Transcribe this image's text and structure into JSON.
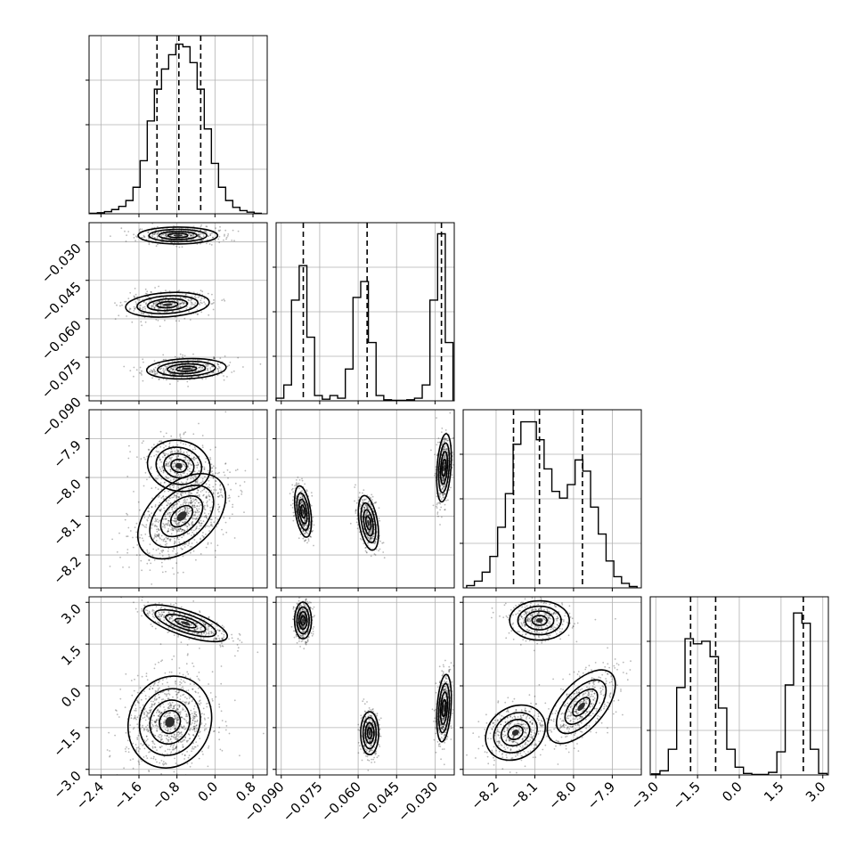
{
  "chart_data": {
    "type": "corner",
    "parameters": [
      {
        "range": [
          -2.65,
          1.1
        ],
        "ticks": [
          -2.4,
          -1.6,
          -0.8,
          0.0,
          0.8
        ],
        "tick_labels": [
          "−2.4",
          "−1.6",
          "−0.8",
          "0.0",
          "0.8"
        ]
      },
      {
        "range": [
          -0.092,
          -0.0225
        ],
        "ticks": [
          -0.09,
          -0.075,
          -0.06,
          -0.045,
          -0.03
        ],
        "tick_labels": [
          "−0.090",
          "−0.075",
          "−0.060",
          "−0.045",
          "−0.030"
        ]
      },
      {
        "range": [
          -8.285,
          -7.825
        ],
        "ticks": [
          -8.2,
          -8.1,
          -8.0,
          -7.9
        ],
        "tick_labels": [
          "−8.2",
          "−8.1",
          "−8.0",
          "−7.9"
        ]
      },
      {
        "range": [
          -3.2,
          3.2
        ],
        "ticks": [
          -3.0,
          -1.5,
          0.0,
          1.5,
          3.0
        ],
        "tick_labels": [
          "−3.0",
          "−1.5",
          "0.0",
          "1.5",
          "3.0"
        ]
      }
    ],
    "histograms": [
      {
        "quantiles": [
          -1.22,
          -0.76,
          -0.3
        ],
        "peak": 0.32,
        "x": [
          -2.55,
          -2.4,
          -2.25,
          -2.1,
          -1.95,
          -1.8,
          -1.65,
          -1.5,
          -1.35,
          -1.2,
          -1.05,
          -0.9,
          -0.75,
          -0.6,
          -0.45,
          -0.3,
          -0.15,
          0.0,
          0.15,
          0.3,
          0.45,
          0.6,
          0.75,
          0.9
        ],
        "counts": [
          0.001,
          0.002,
          0.004,
          0.008,
          0.014,
          0.025,
          0.05,
          0.1,
          0.175,
          0.235,
          0.273,
          0.3,
          0.32,
          0.315,
          0.285,
          0.235,
          0.16,
          0.095,
          0.05,
          0.025,
          0.012,
          0.006,
          0.003,
          0.001
        ]
      },
      {
        "quantiles": [
          -0.0814,
          -0.0565,
          -0.0275
        ],
        "peak": 0.32,
        "x": [
          -0.0905,
          -0.0875,
          -0.0845,
          -0.0815,
          -0.0785,
          -0.0755,
          -0.0725,
          -0.0695,
          -0.0665,
          -0.0635,
          -0.0605,
          -0.0575,
          -0.0545,
          -0.0515,
          -0.0485,
          -0.0455,
          -0.0425,
          -0.0395,
          -0.0365,
          -0.0335,
          -0.0305,
          -0.0275,
          -0.0245
        ],
        "counts": [
          0.005,
          0.03,
          0.19,
          0.255,
          0.12,
          0.01,
          0.003,
          0.01,
          0.005,
          0.06,
          0.195,
          0.225,
          0.11,
          0.01,
          0.002,
          0.001,
          0.001,
          0.002,
          0.005,
          0.03,
          0.19,
          0.315,
          0.11
        ]
      },
      {
        "quantiles": [
          -8.155,
          -8.088,
          -7.977
        ],
        "peak": 0.378,
        "x": [
          -8.266,
          -8.246,
          -8.226,
          -8.206,
          -8.186,
          -8.166,
          -8.146,
          -8.126,
          -8.106,
          -8.086,
          -8.066,
          -8.046,
          -8.026,
          -8.006,
          -7.986,
          -7.966,
          -7.946,
          -7.926,
          -7.906,
          -7.886,
          -7.866,
          -7.846
        ],
        "counts": [
          0.005,
          0.015,
          0.035,
          0.07,
          0.135,
          0.21,
          0.32,
          0.37,
          0.37,
          0.33,
          0.265,
          0.215,
          0.2,
          0.23,
          0.285,
          0.26,
          0.18,
          0.12,
          0.06,
          0.025,
          0.01,
          0.003
        ]
      },
      {
        "quantiles": [
          -1.75,
          -0.85,
          2.3
        ],
        "peak": 0.33,
        "x": [
          -3.0,
          -2.7,
          -2.4,
          -2.1,
          -1.8,
          -1.5,
          -1.2,
          -0.9,
          -0.6,
          -0.3,
          0.0,
          0.3,
          0.6,
          0.9,
          1.2,
          1.5,
          1.8,
          2.1,
          2.4,
          2.7,
          3.0
        ],
        "counts": [
          0.002,
          0.008,
          0.05,
          0.17,
          0.265,
          0.255,
          0.26,
          0.23,
          0.13,
          0.05,
          0.015,
          0.003,
          0.001,
          0.001,
          0.005,
          0.045,
          0.175,
          0.315,
          0.295,
          0.05,
          0.003
        ]
      }
    ],
    "scatter_panels": [
      {
        "row": 1,
        "col": 0,
        "clusters": [
          {
            "cx": -0.78,
            "cy": -0.0275,
            "sx": 0.38,
            "sy": 0.0015,
            "rho": 0.0,
            "w": 0.34
          },
          {
            "cx": -1.0,
            "cy": -0.0545,
            "sx": 0.4,
            "sy": 0.0022,
            "rho": 0.2,
            "w": 0.33
          },
          {
            "cx": -0.6,
            "cy": -0.0795,
            "sx": 0.38,
            "sy": 0.0018,
            "rho": 0.15,
            "w": 0.33
          }
        ]
      },
      {
        "row": 2,
        "col": 0,
        "clusters": [
          {
            "cx": -0.76,
            "cy": -7.97,
            "sx": 0.3,
            "sy": 0.03,
            "rho": -0.1,
            "w": 0.32
          },
          {
            "cx": -0.7,
            "cy": -8.1,
            "sx": 0.42,
            "sy": 0.05,
            "rho": 0.45,
            "w": 0.68
          }
        ]
      },
      {
        "row": 2,
        "col": 1,
        "clusters": [
          {
            "cx": -0.0815,
            "cy": -8.088,
            "sx": 0.0015,
            "sy": 0.03,
            "rho": -0.4,
            "w": 0.33
          },
          {
            "cx": -0.056,
            "cy": -8.117,
            "sx": 0.0018,
            "sy": 0.032,
            "rho": -0.4,
            "w": 0.33
          },
          {
            "cx": -0.0265,
            "cy": -7.975,
            "sx": 0.0013,
            "sy": 0.04,
            "rho": 0.3,
            "w": 0.34
          }
        ]
      },
      {
        "row": 3,
        "col": 0,
        "clusters": [
          {
            "cx": -0.62,
            "cy": 2.25,
            "sx": 0.4,
            "sy": 0.3,
            "rho": -0.7,
            "w": 0.34
          },
          {
            "cx": -0.95,
            "cy": -1.3,
            "sx": 0.4,
            "sy": 0.75,
            "rho": 0.1,
            "w": 0.66
          }
        ]
      },
      {
        "row": 3,
        "col": 1,
        "clusters": [
          {
            "cx": -0.0815,
            "cy": 2.35,
            "sx": 0.0015,
            "sy": 0.3,
            "rho": 0.0,
            "w": 0.33
          },
          {
            "cx": -0.0555,
            "cy": -1.7,
            "sx": 0.0016,
            "sy": 0.35,
            "rho": 0.0,
            "w": 0.33
          },
          {
            "cx": -0.0265,
            "cy": -0.8,
            "sx": 0.0013,
            "sy": 0.55,
            "rho": 0.3,
            "w": 0.34
          }
        ]
      },
      {
        "row": 3,
        "col": 2,
        "clusters": [
          {
            "cx": -8.088,
            "cy": 2.35,
            "sx": 0.035,
            "sy": 0.32,
            "rho": 0.0,
            "w": 0.33
          },
          {
            "cx": -8.15,
            "cy": -1.68,
            "sx": 0.035,
            "sy": 0.45,
            "rho": 0.2,
            "w": 0.33
          },
          {
            "cx": -7.98,
            "cy": -0.75,
            "sx": 0.04,
            "sy": 0.6,
            "rho": 0.6,
            "w": 0.34
          }
        ]
      }
    ],
    "grid": true
  }
}
